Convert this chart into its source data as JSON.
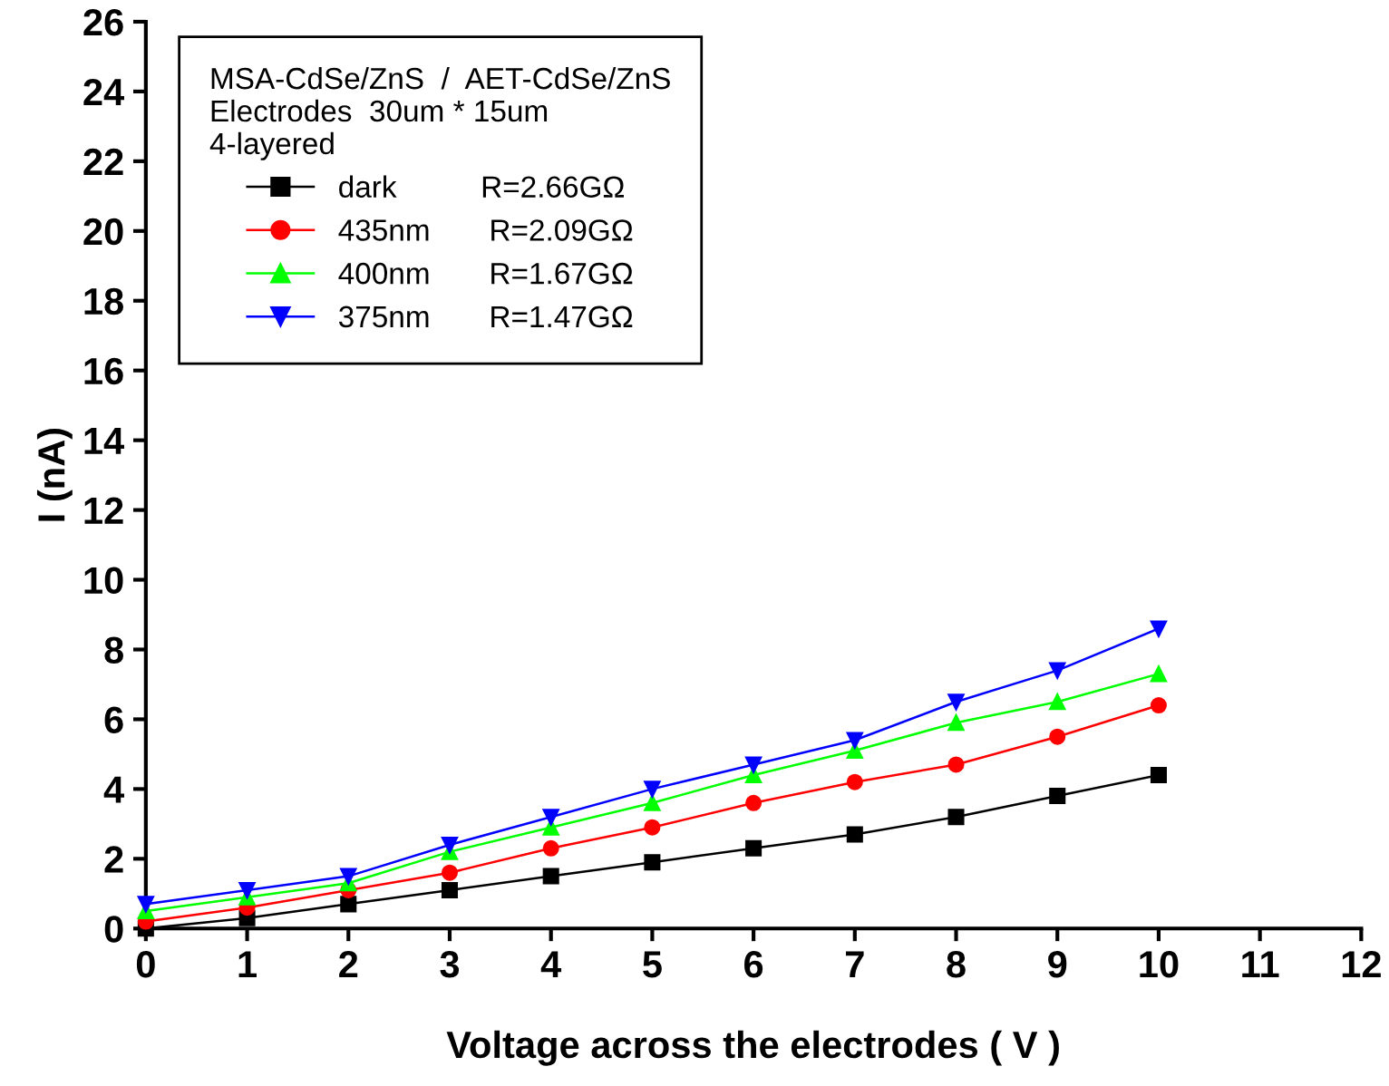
{
  "chart_data": {
    "type": "line",
    "xlabel": "Voltage across the electrodes ( V )",
    "ylabel": "I (nA)",
    "legend_title": "MSA-CdSe/ZnS  /  AET-CdSe/ZnS\nElectrodes  30um * 15um\n4-layered",
    "x": [
      0,
      1,
      2,
      3,
      4,
      5,
      6,
      7,
      8,
      9,
      10
    ],
    "series": [
      {
        "name": "dark          R=2.66GΩ",
        "color": "#000000",
        "marker": "square",
        "values": [
          0,
          0.3,
          0.7,
          1.1,
          1.5,
          1.9,
          2.3,
          2.7,
          3.2,
          3.8,
          4.4
        ]
      },
      {
        "name": "435nm       R=2.09GΩ",
        "color": "#ff0000",
        "marker": "circle",
        "values": [
          0.2,
          0.6,
          1.1,
          1.6,
          2.3,
          2.9,
          3.6,
          4.2,
          4.7,
          5.5,
          6.4
        ]
      },
      {
        "name": "400nm       R=1.67GΩ",
        "color": "#00ff00",
        "marker": "triangle",
        "values": [
          0.5,
          0.9,
          1.3,
          2.2,
          2.9,
          3.6,
          4.4,
          5.1,
          5.9,
          6.5,
          7.3
        ]
      },
      {
        "name": "375nm       R=1.47GΩ",
        "color": "#0000ff",
        "marker": "triangle_down",
        "values": [
          0.7,
          1.1,
          1.5,
          2.4,
          3.2,
          4.0,
          4.7,
          5.4,
          6.5,
          7.4,
          8.6
        ]
      }
    ],
    "xlim": [
      0,
      12
    ],
    "xticks": [
      0,
      1,
      2,
      3,
      4,
      5,
      6,
      7,
      8,
      9,
      10,
      11,
      12
    ],
    "ylim": [
      0,
      26
    ],
    "yticks": [
      0,
      2,
      4,
      6,
      8,
      10,
      12,
      14,
      16,
      18,
      20,
      22,
      24,
      26
    ],
    "grid": false,
    "legend": "top left"
  }
}
